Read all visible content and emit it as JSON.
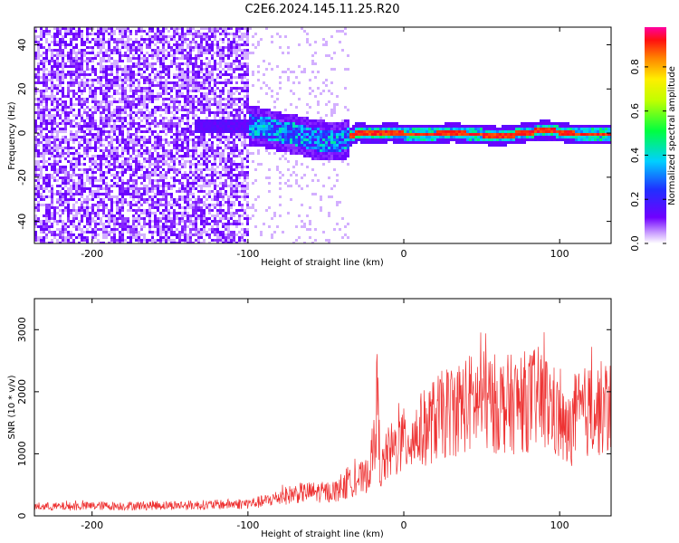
{
  "title": "C2E6.2024.145.11.25.R20",
  "colors": {
    "snr_line": "#ee3333",
    "axes": "#000000"
  },
  "chart_data": [
    {
      "type": "heatmap",
      "name": "spectrogram",
      "xlabel": "Height of straight line (km)",
      "ylabel": "Frequency (Hz)",
      "xlim": [
        -237,
        133
      ],
      "ylim": [
        -50,
        48
      ],
      "xticks": [
        -200,
        -100,
        0,
        100
      ],
      "yticks": [
        -40,
        -20,
        0,
        20,
        40
      ],
      "colorbar": {
        "label": "Normalized spectral amplitude",
        "range": [
          0,
          0.98
        ],
        "ticks": [
          "0.0",
          "0.2",
          "0.4",
          "0.6",
          "0.8"
        ],
        "tick_values": [
          0.0,
          0.2,
          0.4,
          0.6,
          0.8
        ]
      },
      "ridge": {
        "description": "Peak frequency near 0 Hz; strong (0.9+) for heights above about -30 km, noisy below",
        "x": [
          -100,
          -90,
          -80,
          -70,
          -60,
          -50,
          -40,
          -30,
          -20,
          -10,
          0,
          10,
          20,
          30,
          40,
          50,
          60,
          70,
          80,
          90,
          100,
          110,
          120,
          130
        ],
        "y": [
          4,
          3,
          1,
          0,
          -2,
          -3,
          -3,
          1,
          0,
          1,
          0,
          0,
          0,
          1,
          0,
          0,
          -1,
          0,
          1,
          2,
          1,
          0,
          0,
          0
        ]
      }
    },
    {
      "type": "line",
      "name": "snr",
      "xlabel": "Height of straight line (km)",
      "ylabel": "SNR (10 * v/v)",
      "xlim": [
        -237,
        133
      ],
      "ylim": [
        0,
        3500
      ],
      "xticks": [
        -200,
        -100,
        0,
        100
      ],
      "yticks": [
        0,
        1000,
        2000,
        3000
      ],
      "series": [
        {
          "name": "SNR",
          "x": [
            -237,
            -220,
            -200,
            -180,
            -160,
            -140,
            -120,
            -100,
            -90,
            -80,
            -70,
            -60,
            -50,
            -40,
            -30,
            -25,
            -20,
            -17,
            -15,
            -10,
            -5,
            0,
            10,
            20,
            30,
            40,
            50,
            60,
            70,
            80,
            85,
            90,
            95,
            100,
            105,
            110,
            120,
            133
          ],
          "values": [
            150,
            150,
            160,
            160,
            170,
            170,
            180,
            200,
            230,
            300,
            360,
            380,
            380,
            420,
            600,
            600,
            900,
            1900,
            700,
            1000,
            1100,
            1200,
            1350,
            1550,
            1700,
            1800,
            1850,
            1800,
            1800,
            1850,
            1900,
            1850,
            1750,
            1500,
            1300,
            1600,
            1700,
            1750
          ]
        }
      ]
    }
  ]
}
